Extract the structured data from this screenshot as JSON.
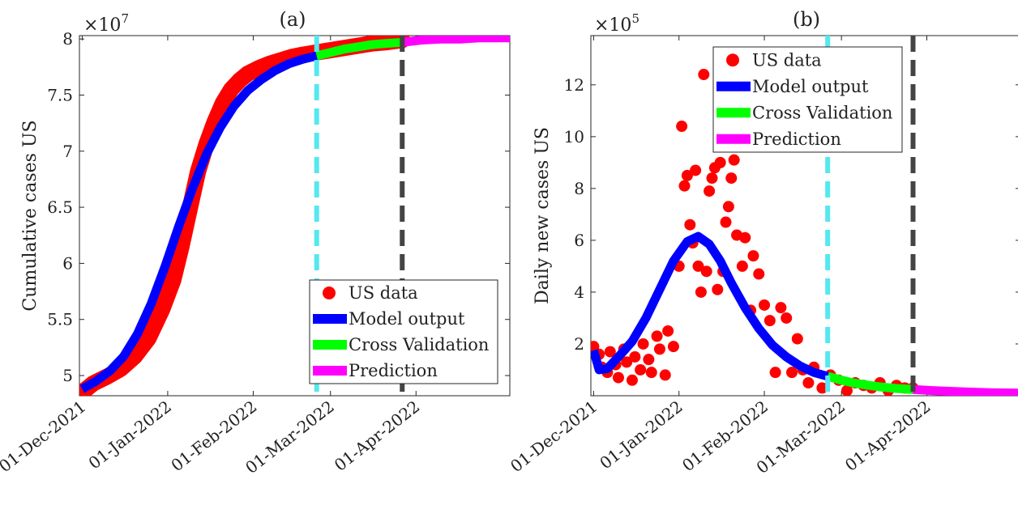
{
  "chart_data": [
    {
      "type": "line",
      "title": "(a)",
      "xlabel": "",
      "ylabel": "Cumulative cases US",
      "y_multiplier": "×10",
      "y_multiplier_exp": "7",
      "ylim": [
        4.82,
        8.03
      ],
      "yticks": [
        5,
        5.5,
        6,
        6.5,
        7,
        7.5,
        8
      ],
      "ytick_labels": [
        "5",
        "5.5",
        "6",
        "6.5",
        "7",
        "7.5",
        "8"
      ],
      "xlim": [
        "2021-11-30",
        "2022-05-05"
      ],
      "xticks": [
        "2021-12-01",
        "2022-01-01",
        "2022-02-01",
        "2022-03-01",
        "2022-04-01"
      ],
      "xtick_labels": [
        "01-Dec-2021",
        "01-Jan-2022",
        "01-Feb-2022",
        "01-Mar-2022",
        "01-Apr-2022"
      ],
      "vlines": [
        {
          "x": "2022-02-24",
          "color": "#55e8f0",
          "style": "dashed"
        },
        {
          "x": "2022-03-27",
          "color": "#444444",
          "style": "dashed"
        }
      ],
      "legend": {
        "placement": "bottom-right",
        "entries": [
          {
            "label": "US data",
            "color": "#ff0000",
            "marker": "circle"
          },
          {
            "label": "Model output",
            "color": "#0000ff",
            "marker": "line"
          },
          {
            "label": "Cross Validation",
            "color": "#00ff00",
            "marker": "line"
          },
          {
            "label": "Prediction",
            "color": "#ff00ff",
            "marker": "line"
          }
        ]
      },
      "series": [
        {
          "name": "US data",
          "kind": "scatter",
          "color": "#ff0000",
          "x": [
            "2021-12-01",
            "2021-12-05",
            "2021-12-10",
            "2021-12-15",
            "2021-12-20",
            "2021-12-25",
            "2021-12-30",
            "2022-01-03",
            "2022-01-06",
            "2022-01-09",
            "2022-01-12",
            "2022-01-15",
            "2022-01-18",
            "2022-01-21",
            "2022-01-24",
            "2022-01-27",
            "2022-01-30",
            "2022-02-03",
            "2022-02-07",
            "2022-02-11",
            "2022-02-15",
            "2022-02-19",
            "2022-02-24",
            "2022-03-01",
            "2022-03-06",
            "2022-03-11",
            "2022-03-16",
            "2022-03-21",
            "2022-03-27"
          ],
          "values": [
            4.85,
            4.93,
            4.99,
            5.06,
            5.17,
            5.33,
            5.59,
            5.85,
            6.15,
            6.49,
            6.82,
            7.06,
            7.26,
            7.43,
            7.55,
            7.63,
            7.69,
            7.74,
            7.78,
            7.81,
            7.84,
            7.86,
            7.88,
            7.9,
            7.92,
            7.94,
            7.96,
            7.97,
            7.99
          ]
        },
        {
          "name": "Model output",
          "kind": "line",
          "color": "#0000ff",
          "x": [
            "2021-12-01",
            "2021-12-06",
            "2021-12-11",
            "2021-12-16",
            "2021-12-21",
            "2021-12-26",
            "2021-12-31",
            "2022-01-05",
            "2022-01-10",
            "2022-01-15",
            "2022-01-20",
            "2022-01-25",
            "2022-01-30",
            "2022-02-04",
            "2022-02-09",
            "2022-02-14",
            "2022-02-19",
            "2022-02-24"
          ],
          "values": [
            4.88,
            4.95,
            5.04,
            5.17,
            5.37,
            5.64,
            5.97,
            6.33,
            6.67,
            6.97,
            7.21,
            7.4,
            7.54,
            7.64,
            7.72,
            7.78,
            7.82,
            7.85
          ]
        },
        {
          "name": "Cross Validation",
          "kind": "line",
          "color": "#00ff00",
          "x": [
            "2022-02-24",
            "2022-03-01",
            "2022-03-06",
            "2022-03-11",
            "2022-03-16",
            "2022-03-21",
            "2022-03-27"
          ],
          "values": [
            7.85,
            7.88,
            7.91,
            7.93,
            7.95,
            7.96,
            7.97
          ]
        },
        {
          "name": "Prediction",
          "kind": "line",
          "color": "#ff00ff",
          "x": [
            "2022-03-27",
            "2022-04-03",
            "2022-04-10",
            "2022-04-17",
            "2022-04-24",
            "2022-05-05"
          ],
          "values": [
            7.97,
            7.99,
            8.0,
            8.0,
            8.01,
            8.01
          ]
        }
      ]
    },
    {
      "type": "line",
      "title": "(b)",
      "xlabel": "",
      "ylabel": "Daily new cases US",
      "y_multiplier": "×10",
      "y_multiplier_exp": "5",
      "ylim": [
        0,
        13.9
      ],
      "yticks": [
        2,
        4,
        6,
        8,
        10,
        12
      ],
      "ytick_labels": [
        "2",
        "4",
        "6",
        "8",
        "10",
        "12"
      ],
      "xlim": [
        "2021-11-30",
        "2022-05-05"
      ],
      "xticks": [
        "2021-12-01",
        "2022-01-01",
        "2022-02-01",
        "2022-03-01",
        "2022-04-01"
      ],
      "xtick_labels": [
        "01-Dec-2021",
        "01-Jan-2022",
        "01-Feb-2022",
        "01-Mar-2022",
        "01-Apr-2022"
      ],
      "vlines": [
        {
          "x": "2022-02-24",
          "color": "#55e8f0",
          "style": "dashed"
        },
        {
          "x": "2022-03-27",
          "color": "#444444",
          "style": "dashed"
        }
      ],
      "legend": {
        "placement": "top-center",
        "entries": [
          {
            "label": "US data",
            "color": "#ff0000",
            "marker": "circle"
          },
          {
            "label": "Model output",
            "color": "#0000ff",
            "marker": "line"
          },
          {
            "label": "Cross Validation",
            "color": "#00ff00",
            "marker": "line"
          },
          {
            "label": "Prediction",
            "color": "#ff00ff",
            "marker": "line"
          }
        ]
      },
      "series": [
        {
          "name": "US data",
          "kind": "scatter",
          "color": "#ff0000",
          "x": [
            "2021-12-01",
            "2021-12-03",
            "2021-12-04",
            "2021-12-06",
            "2021-12-07",
            "2021-12-09",
            "2021-12-10",
            "2021-12-12",
            "2021-12-13",
            "2021-12-15",
            "2021-12-16",
            "2021-12-18",
            "2021-12-19",
            "2021-12-21",
            "2021-12-22",
            "2021-12-24",
            "2021-12-25",
            "2021-12-27",
            "2021-12-28",
            "2021-12-30",
            "2022-01-01",
            "2022-01-02",
            "2022-01-03",
            "2022-01-04",
            "2022-01-05",
            "2022-01-06",
            "2022-01-07",
            "2022-01-08",
            "2022-01-09",
            "2022-01-10",
            "2022-01-11",
            "2022-01-12",
            "2022-01-13",
            "2022-01-14",
            "2022-01-15",
            "2022-01-16",
            "2022-01-17",
            "2022-01-18",
            "2022-01-19",
            "2022-01-20",
            "2022-01-21",
            "2022-01-22",
            "2022-01-24",
            "2022-01-25",
            "2022-01-27",
            "2022-01-28",
            "2022-01-30",
            "2022-02-01",
            "2022-02-03",
            "2022-02-05",
            "2022-02-07",
            "2022-02-09",
            "2022-02-11",
            "2022-02-13",
            "2022-02-15",
            "2022-02-17",
            "2022-02-19",
            "2022-02-22",
            "2022-02-25",
            "2022-02-28",
            "2022-03-03",
            "2022-03-06",
            "2022-03-09",
            "2022-03-12",
            "2022-03-15",
            "2022-03-18",
            "2022-03-21",
            "2022-03-24",
            "2022-03-27"
          ],
          "values": [
            1.9,
            1.6,
            1.1,
            0.9,
            1.7,
            1.2,
            0.7,
            1.8,
            1.3,
            0.6,
            1.5,
            1.0,
            2.0,
            1.4,
            0.9,
            2.3,
            1.8,
            0.8,
            2.5,
            1.9,
            5.0,
            10.4,
            8.1,
            8.5,
            6.6,
            5.9,
            8.7,
            5.0,
            4.0,
            12.4,
            4.8,
            7.9,
            8.4,
            8.8,
            4.1,
            9.0,
            4.8,
            6.7,
            7.3,
            8.4,
            9.1,
            6.2,
            5.0,
            6.1,
            3.3,
            5.4,
            4.7,
            3.5,
            2.9,
            0.9,
            3.4,
            3.0,
            0.9,
            2.2,
            1.0,
            0.5,
            1.1,
            0.3,
            0.8,
            0.6,
            0.2,
            0.5,
            0.4,
            0.3,
            0.5,
            0.2,
            0.4,
            0.3,
            0.3
          ]
        },
        {
          "name": "Model output",
          "kind": "line",
          "color": "#0000ff",
          "x": [
            "2021-12-01",
            "2021-12-03",
            "2021-12-06",
            "2021-12-10",
            "2021-12-15",
            "2021-12-20",
            "2021-12-25",
            "2021-12-30",
            "2022-01-04",
            "2022-01-08",
            "2022-01-12",
            "2022-01-16",
            "2022-01-20",
            "2022-01-25",
            "2022-01-30",
            "2022-02-04",
            "2022-02-09",
            "2022-02-14",
            "2022-02-19",
            "2022-02-24"
          ],
          "values": [
            1.75,
            1.0,
            1.05,
            1.5,
            2.1,
            3.0,
            4.1,
            5.2,
            5.95,
            6.15,
            5.85,
            5.2,
            4.35,
            3.4,
            2.6,
            1.95,
            1.5,
            1.15,
            0.9,
            0.75
          ]
        },
        {
          "name": "Cross Validation",
          "kind": "line",
          "color": "#00ff00",
          "x": [
            "2022-02-24",
            "2022-03-01",
            "2022-03-06",
            "2022-03-11",
            "2022-03-16",
            "2022-03-21",
            "2022-03-27"
          ],
          "values": [
            0.75,
            0.6,
            0.48,
            0.4,
            0.33,
            0.28,
            0.24
          ]
        },
        {
          "name": "Prediction",
          "kind": "line",
          "color": "#ff00ff",
          "x": [
            "2022-03-27",
            "2022-04-03",
            "2022-04-10",
            "2022-04-17",
            "2022-04-24",
            "2022-05-05"
          ],
          "values": [
            0.24,
            0.2,
            0.17,
            0.14,
            0.12,
            0.1
          ]
        }
      ]
    }
  ]
}
